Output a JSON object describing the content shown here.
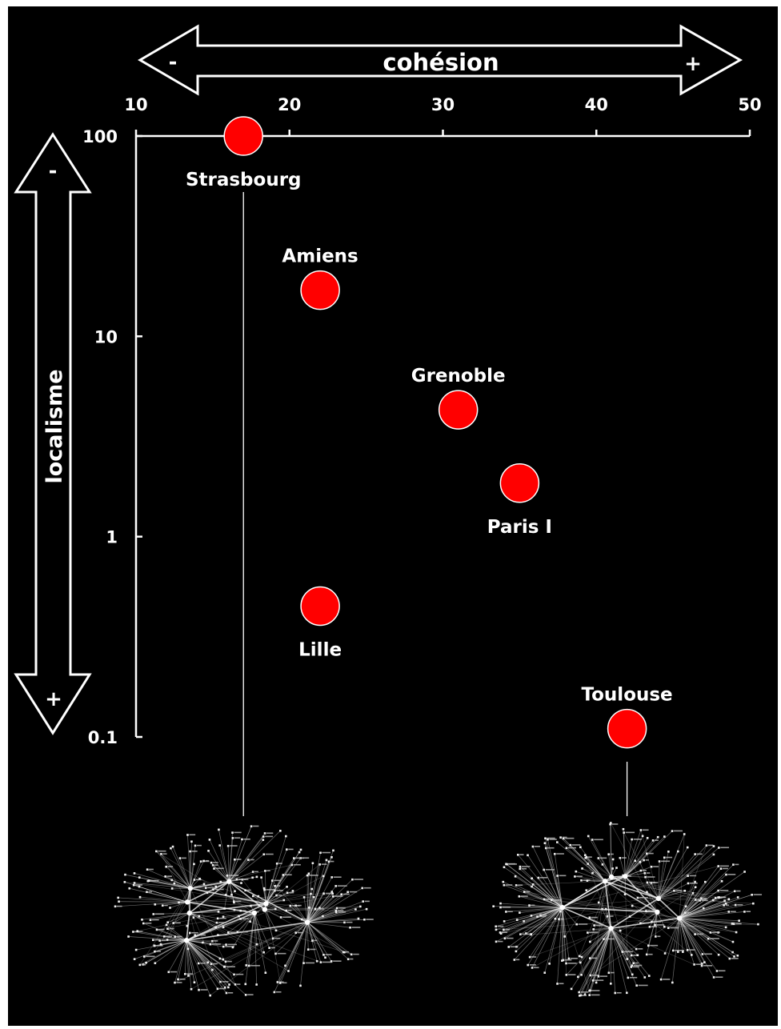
{
  "chart_data": {
    "type": "scatter",
    "xlabel": "cohésion",
    "ylabel": "localisme",
    "x_ticks": [
      10,
      20,
      30,
      40,
      50
    ],
    "y_ticks": [
      {
        "value": 100,
        "label": "100"
      },
      {
        "value": 10,
        "label": "10"
      },
      {
        "value": 1,
        "label": "1"
      },
      {
        "value": 0.1,
        "label": "0.1"
      }
    ],
    "xlim": [
      10,
      50
    ],
    "ylim": [
      0.1,
      100
    ],
    "y_scale": "log",
    "x_arrow": {
      "minus": "-",
      "plus": "+"
    },
    "y_arrow": {
      "minus": "-",
      "plus": "+"
    },
    "marker_color": "#ff0000",
    "points": [
      {
        "label": "Strasbourg",
        "x": 17,
        "y": 100,
        "label_pos": "below"
      },
      {
        "label": "Amiens",
        "x": 22,
        "y": 17,
        "label_pos": "above"
      },
      {
        "label": "Grenoble",
        "x": 31,
        "y": 4.3,
        "label_pos": "above"
      },
      {
        "label": "Paris I",
        "x": 35,
        "y": 1.85,
        "label_pos": "below"
      },
      {
        "label": "Lille",
        "x": 22,
        "y": 0.45,
        "label_pos": "below"
      },
      {
        "label": "Toulouse",
        "x": 42,
        "y": 0.11,
        "label_pos": "above"
      }
    ],
    "network_insets": [
      {
        "name": "strasbourg-network",
        "for": "Strasbourg"
      },
      {
        "name": "toulouse-network",
        "for": "Toulouse"
      }
    ]
  }
}
